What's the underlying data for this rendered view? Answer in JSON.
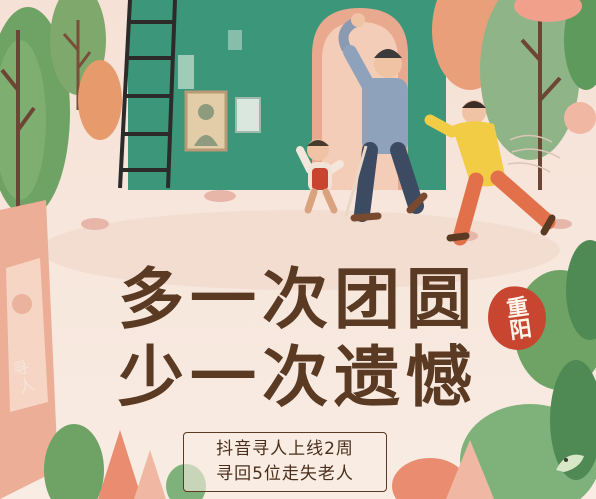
{
  "poster": {
    "headline_line1": "多一次团圆",
    "headline_line2": "少一次遗憾",
    "badge_text": "重阳",
    "info_line1": "抖音寻人上线2周",
    "info_line2": "寻回5位走失老人",
    "sign_text": "寻人"
  },
  "colors": {
    "background": "#f7e9df",
    "house_wall": "#3f9a7e",
    "doorway": "#e9b9a2",
    "headline": "#5a3a22",
    "badge": "#c8452f",
    "tree_green": "#6fa365",
    "tree_orange": "#e79a6c"
  }
}
